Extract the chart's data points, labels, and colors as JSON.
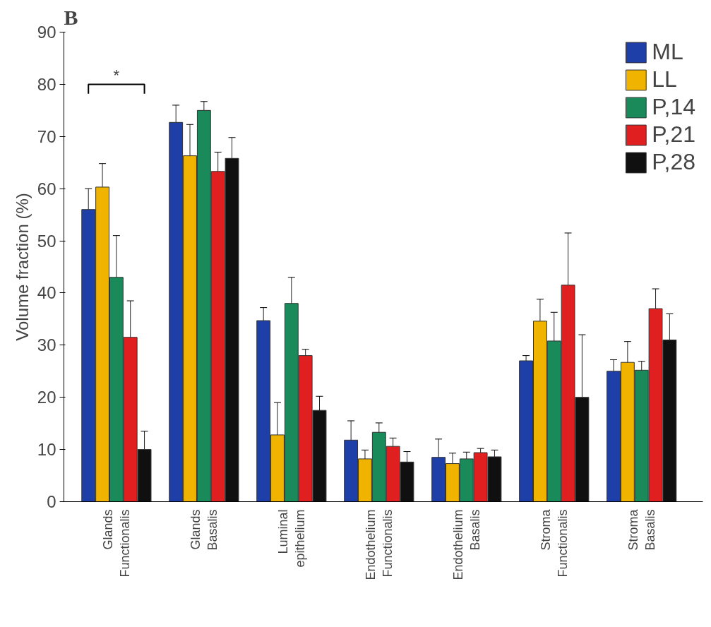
{
  "chart_data": {
    "type": "bar",
    "title": "B",
    "ylabel": "Volume fraction (%)",
    "categories": [
      "Glands Functionalis",
      "Glands Basalis",
      "Luminal epithelium",
      "Endothelium Functionalis",
      "Endothelium Basalis",
      "Stroma Functionalis",
      "Stroma Basalis"
    ],
    "series": [
      {
        "name": "ML",
        "color": "#1f3fa8",
        "values": [
          56,
          72.7,
          34.7,
          11.8,
          8.5,
          27,
          25
        ],
        "errors": [
          4,
          3.3,
          2.5,
          3.7,
          3.5,
          1,
          2.2
        ]
      },
      {
        "name": "LL",
        "color": "#f0b400",
        "values": [
          60.3,
          66.3,
          12.8,
          8.2,
          7.3,
          34.6,
          26.7
        ],
        "errors": [
          4.5,
          6,
          6.2,
          1.7,
          2,
          4.2,
          4
        ]
      },
      {
        "name": "P,14",
        "color": "#1a8a5a",
        "values": [
          43,
          75,
          38,
          13.3,
          8.2,
          30.8,
          25.2
        ],
        "errors": [
          8,
          1.7,
          5,
          1.8,
          1.3,
          5.5,
          1.7
        ]
      },
      {
        "name": "P,21",
        "color": "#e02020",
        "values": [
          31.5,
          63.3,
          28,
          10.6,
          9.4,
          41.5,
          37
        ],
        "errors": [
          7,
          3.7,
          1.2,
          1.6,
          0.8,
          10,
          3.8
        ]
      },
      {
        "name": "P,28",
        "color": "#101010",
        "values": [
          10,
          65.8,
          17.5,
          7.6,
          8.6,
          20,
          31
        ],
        "errors": [
          3.5,
          4,
          2.7,
          2,
          1.3,
          12,
          5
        ]
      }
    ],
    "ylim": [
      0,
      90
    ],
    "yticks": [
      0,
      10,
      20,
      30,
      40,
      50,
      60,
      70,
      80,
      90
    ],
    "annotations": [
      "*"
    ],
    "grid": false,
    "legend": "top right"
  }
}
